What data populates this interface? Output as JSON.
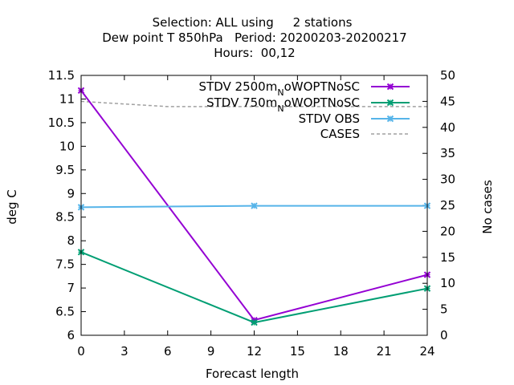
{
  "chart_data": {
    "type": "line",
    "title_lines": [
      "Selection: ALL using     2 stations",
      "Dew point T 850hPa   Period: 20200203-20200217",
      "Hours:  00,12"
    ],
    "xlabel": "Forecast length",
    "ylabel": "deg C",
    "y2label": "No cases",
    "xlim": [
      0,
      24
    ],
    "ylim": [
      6,
      11.5
    ],
    "y2lim": [
      0,
      50
    ],
    "xticks": [
      0,
      3,
      6,
      9,
      12,
      15,
      18,
      21,
      24
    ],
    "yticks": [
      6,
      6.5,
      7,
      7.5,
      8,
      8.5,
      9,
      9.5,
      10,
      10.5,
      11,
      11.5
    ],
    "y2ticks": [
      0,
      5,
      10,
      15,
      20,
      25,
      30,
      35,
      40,
      45,
      50
    ],
    "legend_position": "top-right",
    "series": [
      {
        "name_main": "STDV 2500m",
        "name_sub": "N",
        "name_tail": "oWOPTNoSC",
        "color": "#9400d3",
        "axis": "y1",
        "marker": "x",
        "x": [
          0,
          12,
          24
        ],
        "values": [
          11.18,
          6.32,
          7.28
        ]
      },
      {
        "name_main": "STDV 750m",
        "name_sub": "N",
        "name_tail": "oWOPTNoSC",
        "color": "#009e73",
        "axis": "y1",
        "marker": "x",
        "x": [
          0,
          12,
          24
        ],
        "values": [
          7.76,
          6.27,
          6.99
        ]
      },
      {
        "name_main": "STDV OBS",
        "name_sub": "",
        "name_tail": "",
        "color": "#56b4e9",
        "axis": "y1",
        "marker": "x",
        "x": [
          0,
          12,
          24
        ],
        "values": [
          8.71,
          8.74,
          8.74
        ]
      },
      {
        "name_main": "CASES",
        "name_sub": "",
        "name_tail": "",
        "color": "#a0a0a0",
        "axis": "y2",
        "marker": "none",
        "dashed": true,
        "x": [
          0,
          3,
          6,
          9,
          12,
          15,
          18,
          21,
          24
        ],
        "values": [
          45,
          44.5,
          44,
          44,
          44,
          44,
          44,
          44,
          44
        ]
      }
    ]
  }
}
